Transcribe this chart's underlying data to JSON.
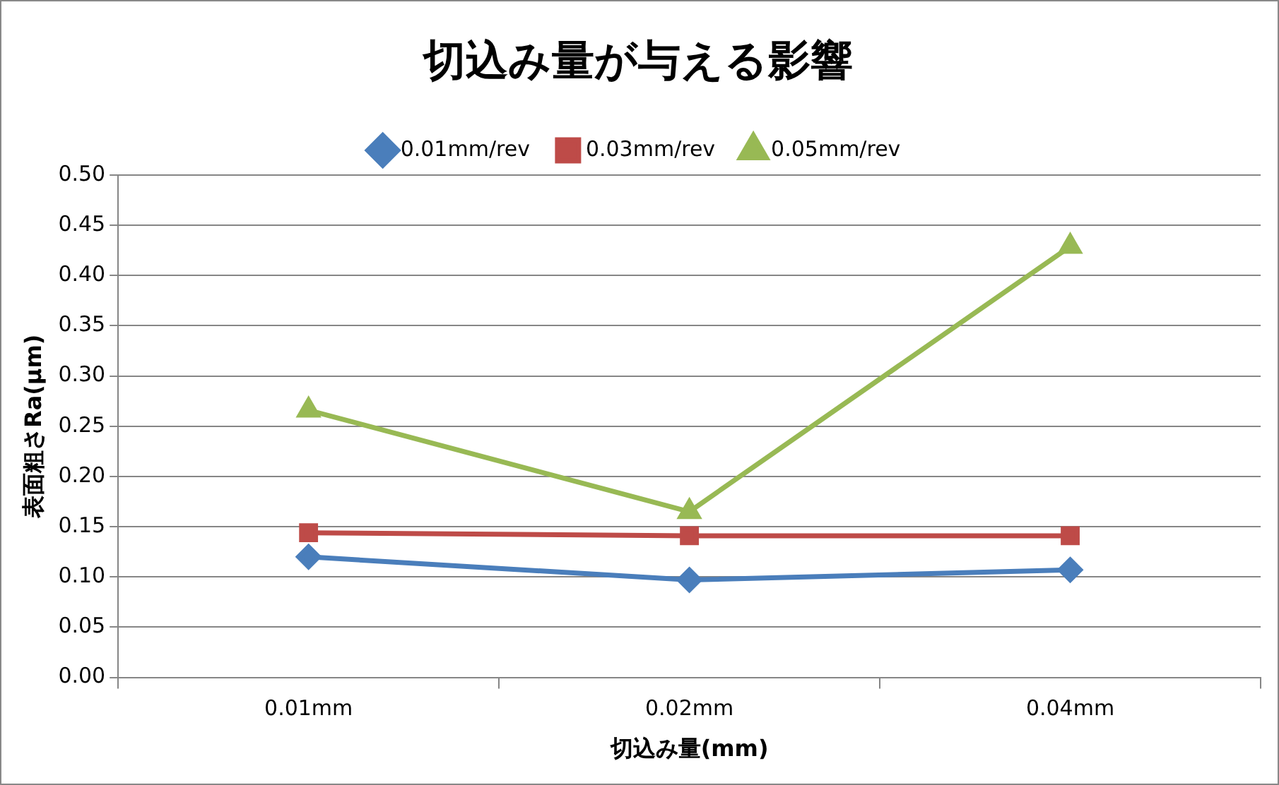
{
  "chart_data": {
    "type": "line",
    "title": "切込み量が与える影響",
    "xlabel": "切込み量(mm)",
    "ylabel": "表面粗さRa(μm)",
    "categories": [
      "0.01mm",
      "0.02mm",
      "0.04mm"
    ],
    "series": [
      {
        "name": "0.01mm/rev",
        "color": "#4a7ebb",
        "marker": "diamond",
        "values": [
          0.12,
          0.097,
          0.107
        ]
      },
      {
        "name": "0.03mm/rev",
        "color": "#be4b48",
        "marker": "square",
        "values": [
          0.144,
          0.141,
          0.141
        ]
      },
      {
        "name": "0.05mm/rev",
        "color": "#98b954",
        "marker": "triangle",
        "values": [
          0.266,
          0.165,
          0.429
        ]
      }
    ],
    "ylim": [
      0,
      0.5
    ],
    "yticks": [
      {
        "value": 0,
        "label": "0.00"
      },
      {
        "value": 0.05,
        "label": "0.05"
      },
      {
        "value": 0.1,
        "label": "0.10"
      },
      {
        "value": 0.15,
        "label": "0.15"
      },
      {
        "value": 0.2,
        "label": "0.20"
      },
      {
        "value": 0.25,
        "label": "0.25"
      },
      {
        "value": 0.3,
        "label": "0.30"
      },
      {
        "value": 0.35,
        "label": "0.35"
      },
      {
        "value": 0.4,
        "label": "0.40"
      },
      {
        "value": 0.45,
        "label": "0.45"
      },
      {
        "value": 0.5,
        "label": "0.50"
      }
    ],
    "grid": "y",
    "legend": "top",
    "line_style": "solid"
  }
}
